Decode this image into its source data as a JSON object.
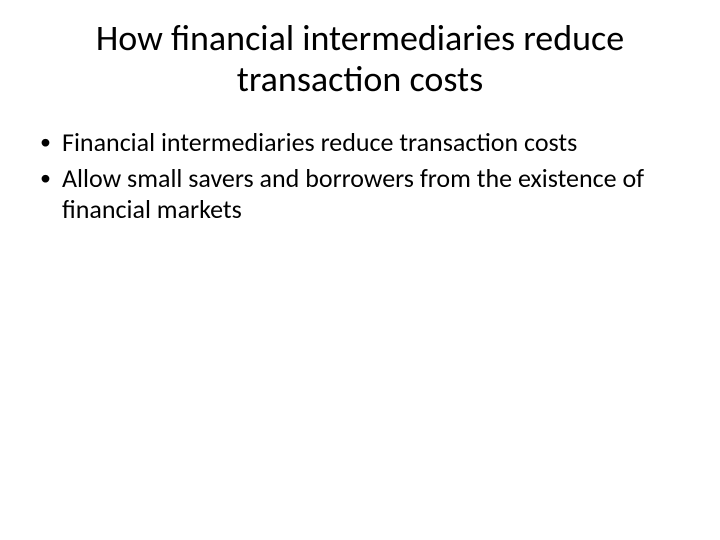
{
  "slide": {
    "title": "How financial intermediaries reduce transaction costs",
    "bullets": [
      "Financial intermediaries reduce transaction costs",
      "Allow small savers and borrowers from the existence of financial markets"
    ],
    "style": {
      "background_color": "#ffffff",
      "text_color": "#000000",
      "title_fontsize_pt": 36,
      "body_fontsize_pt": 26,
      "font_family": "Calibri",
      "bullet_glyph": "•"
    }
  }
}
